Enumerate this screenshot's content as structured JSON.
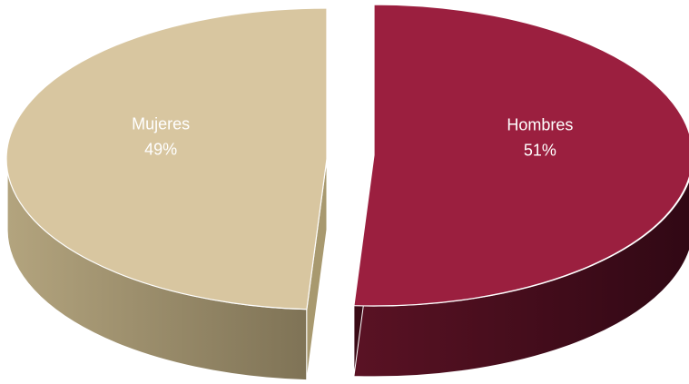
{
  "chart_data": {
    "type": "pie",
    "style": "3d-exploded",
    "title": "",
    "legend": "none",
    "slices": [
      {
        "name": "Hombres",
        "value": 51,
        "label": "51%",
        "color": "#9b1f3f",
        "side_color": "#4a0e1e"
      },
      {
        "name": "Mujeres",
        "value": 49,
        "label": "49%",
        "color": "#d8c6a0",
        "side_color": "#9e906d"
      }
    ]
  }
}
